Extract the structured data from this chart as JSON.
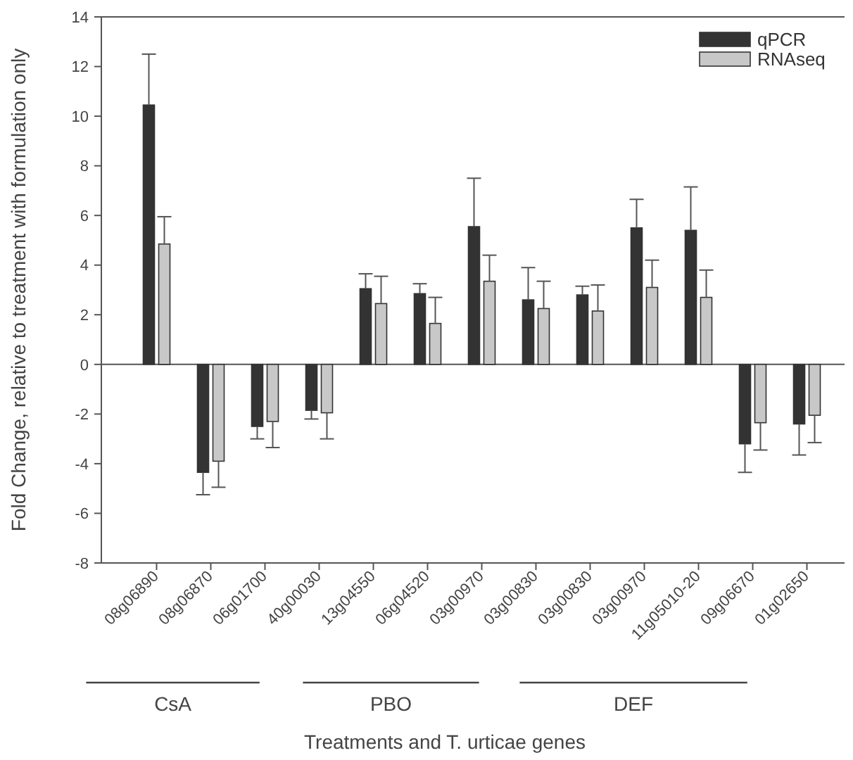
{
  "chart_data": {
    "type": "bar",
    "xlabel": "Treatments and T. urticae genes",
    "ylabel": "Fold Change, relative to treatment with formulation only",
    "categories": [
      "08g06890",
      "08g06870",
      "06g01700",
      "40g00030",
      "13g04550",
      "06g04520",
      "03g00970",
      "03g00830",
      "03g00830",
      "03g00970",
      "11g05010-20",
      "09g06670",
      "01g02650"
    ],
    "series": [
      {
        "name": "qPCR",
        "color": "#333333",
        "values": [
          10.45,
          -4.35,
          -2.5,
          -1.85,
          3.05,
          2.85,
          5.55,
          2.6,
          2.8,
          5.5,
          5.4,
          -3.2,
          -2.4
        ],
        "errors": [
          [
            10.45,
            12.5
          ],
          [
            -5.25,
            -4.35
          ],
          [
            -3.0,
            -2.5
          ],
          [
            -2.2,
            -1.85
          ],
          [
            3.05,
            3.65
          ],
          [
            2.85,
            3.25
          ],
          [
            5.55,
            7.5
          ],
          [
            2.6,
            3.9
          ],
          [
            2.8,
            3.15
          ],
          [
            5.5,
            6.65
          ],
          [
            5.4,
            7.15
          ],
          [
            -4.35,
            -3.2
          ],
          [
            -3.65,
            -2.4
          ]
        ]
      },
      {
        "name": "RNAseq",
        "color": "#c8c8c8",
        "values": [
          4.85,
          -3.9,
          -2.3,
          -1.95,
          2.45,
          1.65,
          3.35,
          2.25,
          2.15,
          3.1,
          2.7,
          -2.35,
          -2.05
        ],
        "errors": [
          [
            4.85,
            5.95
          ],
          [
            -4.95,
            -3.9
          ],
          [
            -3.35,
            -2.3
          ],
          [
            -3.0,
            -1.95
          ],
          [
            2.45,
            3.55
          ],
          [
            1.65,
            2.7
          ],
          [
            3.35,
            4.4
          ],
          [
            2.25,
            3.35
          ],
          [
            2.15,
            3.2
          ],
          [
            3.1,
            4.2
          ],
          [
            2.7,
            3.8
          ],
          [
            -3.45,
            -2.35
          ],
          [
            -3.15,
            -2.05
          ]
        ]
      }
    ],
    "ylim": [
      -8,
      14
    ],
    "yticks": [
      -8,
      -6,
      -4,
      -2,
      0,
      2,
      4,
      6,
      8,
      10,
      12,
      14
    ],
    "legend": "top right",
    "annotations": [
      "CsA",
      "PBO",
      "DEF"
    ]
  }
}
